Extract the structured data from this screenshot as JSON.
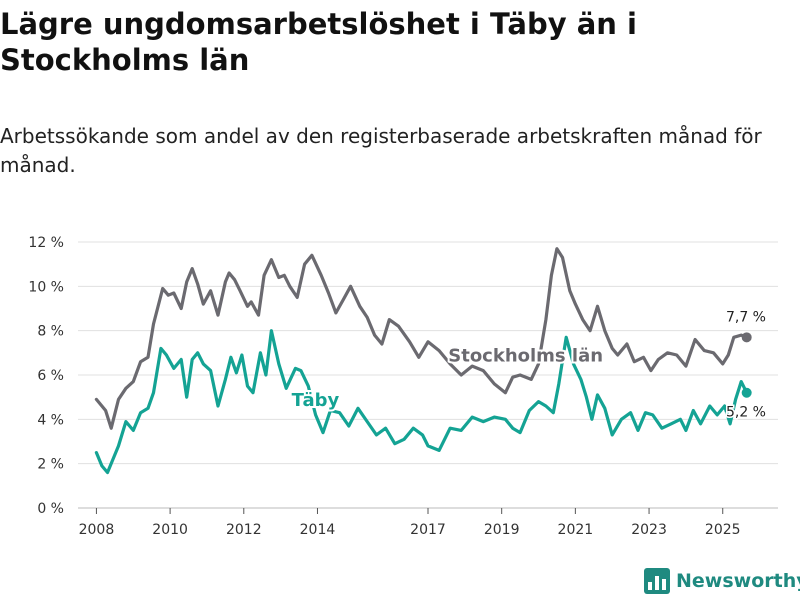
{
  "chart_data": {
    "type": "line",
    "title": "Lägre ungdomsarbetslöshet i Täby än i Stockholms län",
    "subtitle": "Arbetssökande som andel av den registerbaserade arbetskraften månad för månad.",
    "xlabel": "",
    "ylabel": "",
    "ylim": [
      0,
      12
    ],
    "xlim": [
      2007.5,
      2026.5
    ],
    "y_ticks": [
      0,
      2,
      4,
      6,
      8,
      10,
      12
    ],
    "y_tick_labels": [
      "0 %",
      "2 %",
      "4 %",
      "6 %",
      "8 %",
      "10 %",
      "12 %"
    ],
    "x_ticks": [
      2008,
      2010,
      2012,
      2014,
      2017,
      2019,
      2021,
      2023,
      2025
    ],
    "x_tick_labels": [
      "2008",
      "2010",
      "2012",
      "2014",
      "2017",
      "2019",
      "2021",
      "2023",
      "2025"
    ],
    "grid": true,
    "series": [
      {
        "name": "Stockholms län",
        "color": "#6b6a70",
        "label": "Stockholms län",
        "end_label": "7,7 %",
        "end_value": 7.7,
        "x": [
          2008.0,
          2008.25,
          2008.4,
          2008.6,
          2008.8,
          2009.0,
          2009.2,
          2009.4,
          2009.55,
          2009.8,
          2009.95,
          2010.1,
          2010.3,
          2010.45,
          2010.6,
          2010.75,
          2010.9,
          2011.1,
          2011.3,
          2011.5,
          2011.6,
          2011.75,
          2011.9,
          2012.1,
          2012.2,
          2012.4,
          2012.55,
          2012.75,
          2012.95,
          2013.1,
          2013.25,
          2013.45,
          2013.65,
          2013.85,
          2014.1,
          2014.3,
          2014.5,
          2014.7,
          2014.9,
          2015.15,
          2015.35,
          2015.55,
          2015.75,
          2015.95,
          2016.2,
          2016.5,
          2016.75,
          2017.0,
          2017.3,
          2017.6,
          2017.9,
          2018.2,
          2018.5,
          2018.8,
          2019.1,
          2019.3,
          2019.5,
          2019.8,
          2020.0,
          2020.2,
          2020.35,
          2020.5,
          2020.65,
          2020.85,
          2021.0,
          2021.2,
          2021.4,
          2021.6,
          2021.8,
          2022.0,
          2022.15,
          2022.4,
          2022.6,
          2022.85,
          2023.05,
          2023.25,
          2023.5,
          2023.75,
          2024.0,
          2024.25,
          2024.5,
          2024.75,
          2025.0,
          2025.15,
          2025.3,
          2025.5,
          2025.65
        ],
        "values": [
          4.9,
          4.4,
          3.6,
          4.9,
          5.4,
          5.7,
          6.6,
          6.8,
          8.3,
          9.9,
          9.6,
          9.7,
          9.0,
          10.2,
          10.8,
          10.1,
          9.2,
          9.8,
          8.7,
          10.2,
          10.6,
          10.3,
          9.8,
          9.1,
          9.3,
          8.7,
          10.5,
          11.2,
          10.4,
          10.5,
          10.0,
          9.5,
          11.0,
          11.4,
          10.5,
          9.7,
          8.8,
          9.4,
          10.0,
          9.1,
          8.6,
          7.8,
          7.4,
          8.5,
          8.2,
          7.5,
          6.8,
          7.5,
          7.1,
          6.5,
          6.0,
          6.4,
          6.2,
          5.6,
          5.2,
          5.9,
          6.0,
          5.8,
          6.5,
          8.5,
          10.5,
          11.7,
          11.3,
          9.8,
          9.2,
          8.5,
          8.0,
          9.1,
          8.0,
          7.2,
          6.9,
          7.4,
          6.6,
          6.8,
          6.2,
          6.7,
          7.0,
          6.9,
          6.4,
          7.6,
          7.1,
          7.0,
          6.5,
          6.9,
          7.7,
          7.8,
          7.7
        ]
      },
      {
        "name": "Täby",
        "color": "#14a394",
        "label": "Täby",
        "end_label": "5,2 %",
        "end_value": 5.2,
        "x": [
          2008.0,
          2008.15,
          2008.3,
          2008.45,
          2008.6,
          2008.8,
          2009.0,
          2009.2,
          2009.4,
          2009.55,
          2009.75,
          2009.9,
          2010.1,
          2010.3,
          2010.45,
          2010.6,
          2010.75,
          2010.9,
          2011.1,
          2011.3,
          2011.5,
          2011.65,
          2011.8,
          2011.95,
          2012.1,
          2012.25,
          2012.45,
          2012.6,
          2012.75,
          2012.95,
          2013.15,
          2013.4,
          2013.55,
          2013.75,
          2013.95,
          2014.15,
          2014.35,
          2014.6,
          2014.85,
          2015.1,
          2015.35,
          2015.6,
          2015.85,
          2016.1,
          2016.35,
          2016.6,
          2016.85,
          2017.0,
          2017.3,
          2017.6,
          2017.9,
          2018.2,
          2018.5,
          2018.8,
          2019.1,
          2019.3,
          2019.5,
          2019.75,
          2020.0,
          2020.2,
          2020.4,
          2020.55,
          2020.75,
          2020.95,
          2021.15,
          2021.3,
          2021.45,
          2021.6,
          2021.8,
          2022.0,
          2022.25,
          2022.5,
          2022.7,
          2022.9,
          2023.1,
          2023.35,
          2023.6,
          2023.85,
          2024.0,
          2024.2,
          2024.4,
          2024.65,
          2024.85,
          2025.05,
          2025.2,
          2025.35,
          2025.5,
          2025.65
        ],
        "values": [
          2.5,
          1.9,
          1.6,
          2.2,
          2.8,
          3.9,
          3.5,
          4.3,
          4.5,
          5.2,
          7.2,
          6.9,
          6.3,
          6.7,
          5.0,
          6.7,
          7.0,
          6.5,
          6.2,
          4.6,
          5.8,
          6.8,
          6.1,
          6.9,
          5.5,
          5.2,
          7.0,
          6.0,
          8.0,
          6.5,
          5.4,
          6.3,
          6.2,
          5.5,
          4.2,
          3.4,
          4.4,
          4.3,
          3.7,
          4.5,
          3.9,
          3.3,
          3.6,
          2.9,
          3.1,
          3.6,
          3.3,
          2.8,
          2.6,
          3.6,
          3.5,
          4.1,
          3.9,
          4.1,
          4.0,
          3.6,
          3.4,
          4.4,
          4.8,
          4.6,
          4.3,
          5.6,
          7.7,
          6.5,
          5.8,
          5.0,
          4.0,
          5.1,
          4.5,
          3.3,
          4.0,
          4.3,
          3.5,
          4.3,
          4.2,
          3.6,
          3.8,
          4.0,
          3.5,
          4.4,
          3.8,
          4.6,
          4.2,
          4.6,
          3.8,
          4.9,
          5.7,
          5.2
        ]
      }
    ]
  },
  "footer": {
    "brand_name": "Newsworthy"
  }
}
